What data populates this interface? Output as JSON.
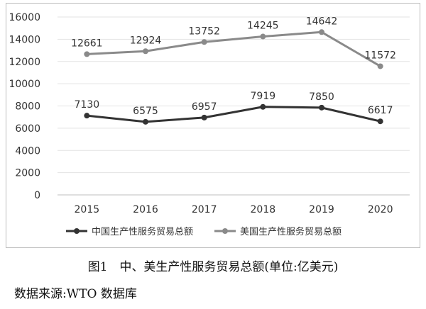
{
  "chart_data": {
    "type": "line",
    "x": [
      "2015",
      "2016",
      "2017",
      "2018",
      "2019",
      "2020"
    ],
    "series": [
      {
        "name": "中国生产性服务贸易总额",
        "values": [
          7130,
          6575,
          6957,
          7919,
          7850,
          6617
        ],
        "color": "#333333"
      },
      {
        "name": "美国生产性服务贸易总额",
        "values": [
          12661,
          12924,
          13752,
          14245,
          14642,
          11572
        ],
        "color": "#8a8a8a"
      }
    ],
    "yticks": [
      "0",
      "2000",
      "4000",
      "6000",
      "8000",
      "10000",
      "12000",
      "14000",
      "16000"
    ],
    "ylim": [
      0,
      16000
    ],
    "grid": true,
    "legend": "bottom"
  },
  "caption": "图1　中、美生产性服务贸易总额(单位:亿美元)",
  "source": "数据来源:WTO 数据库"
}
